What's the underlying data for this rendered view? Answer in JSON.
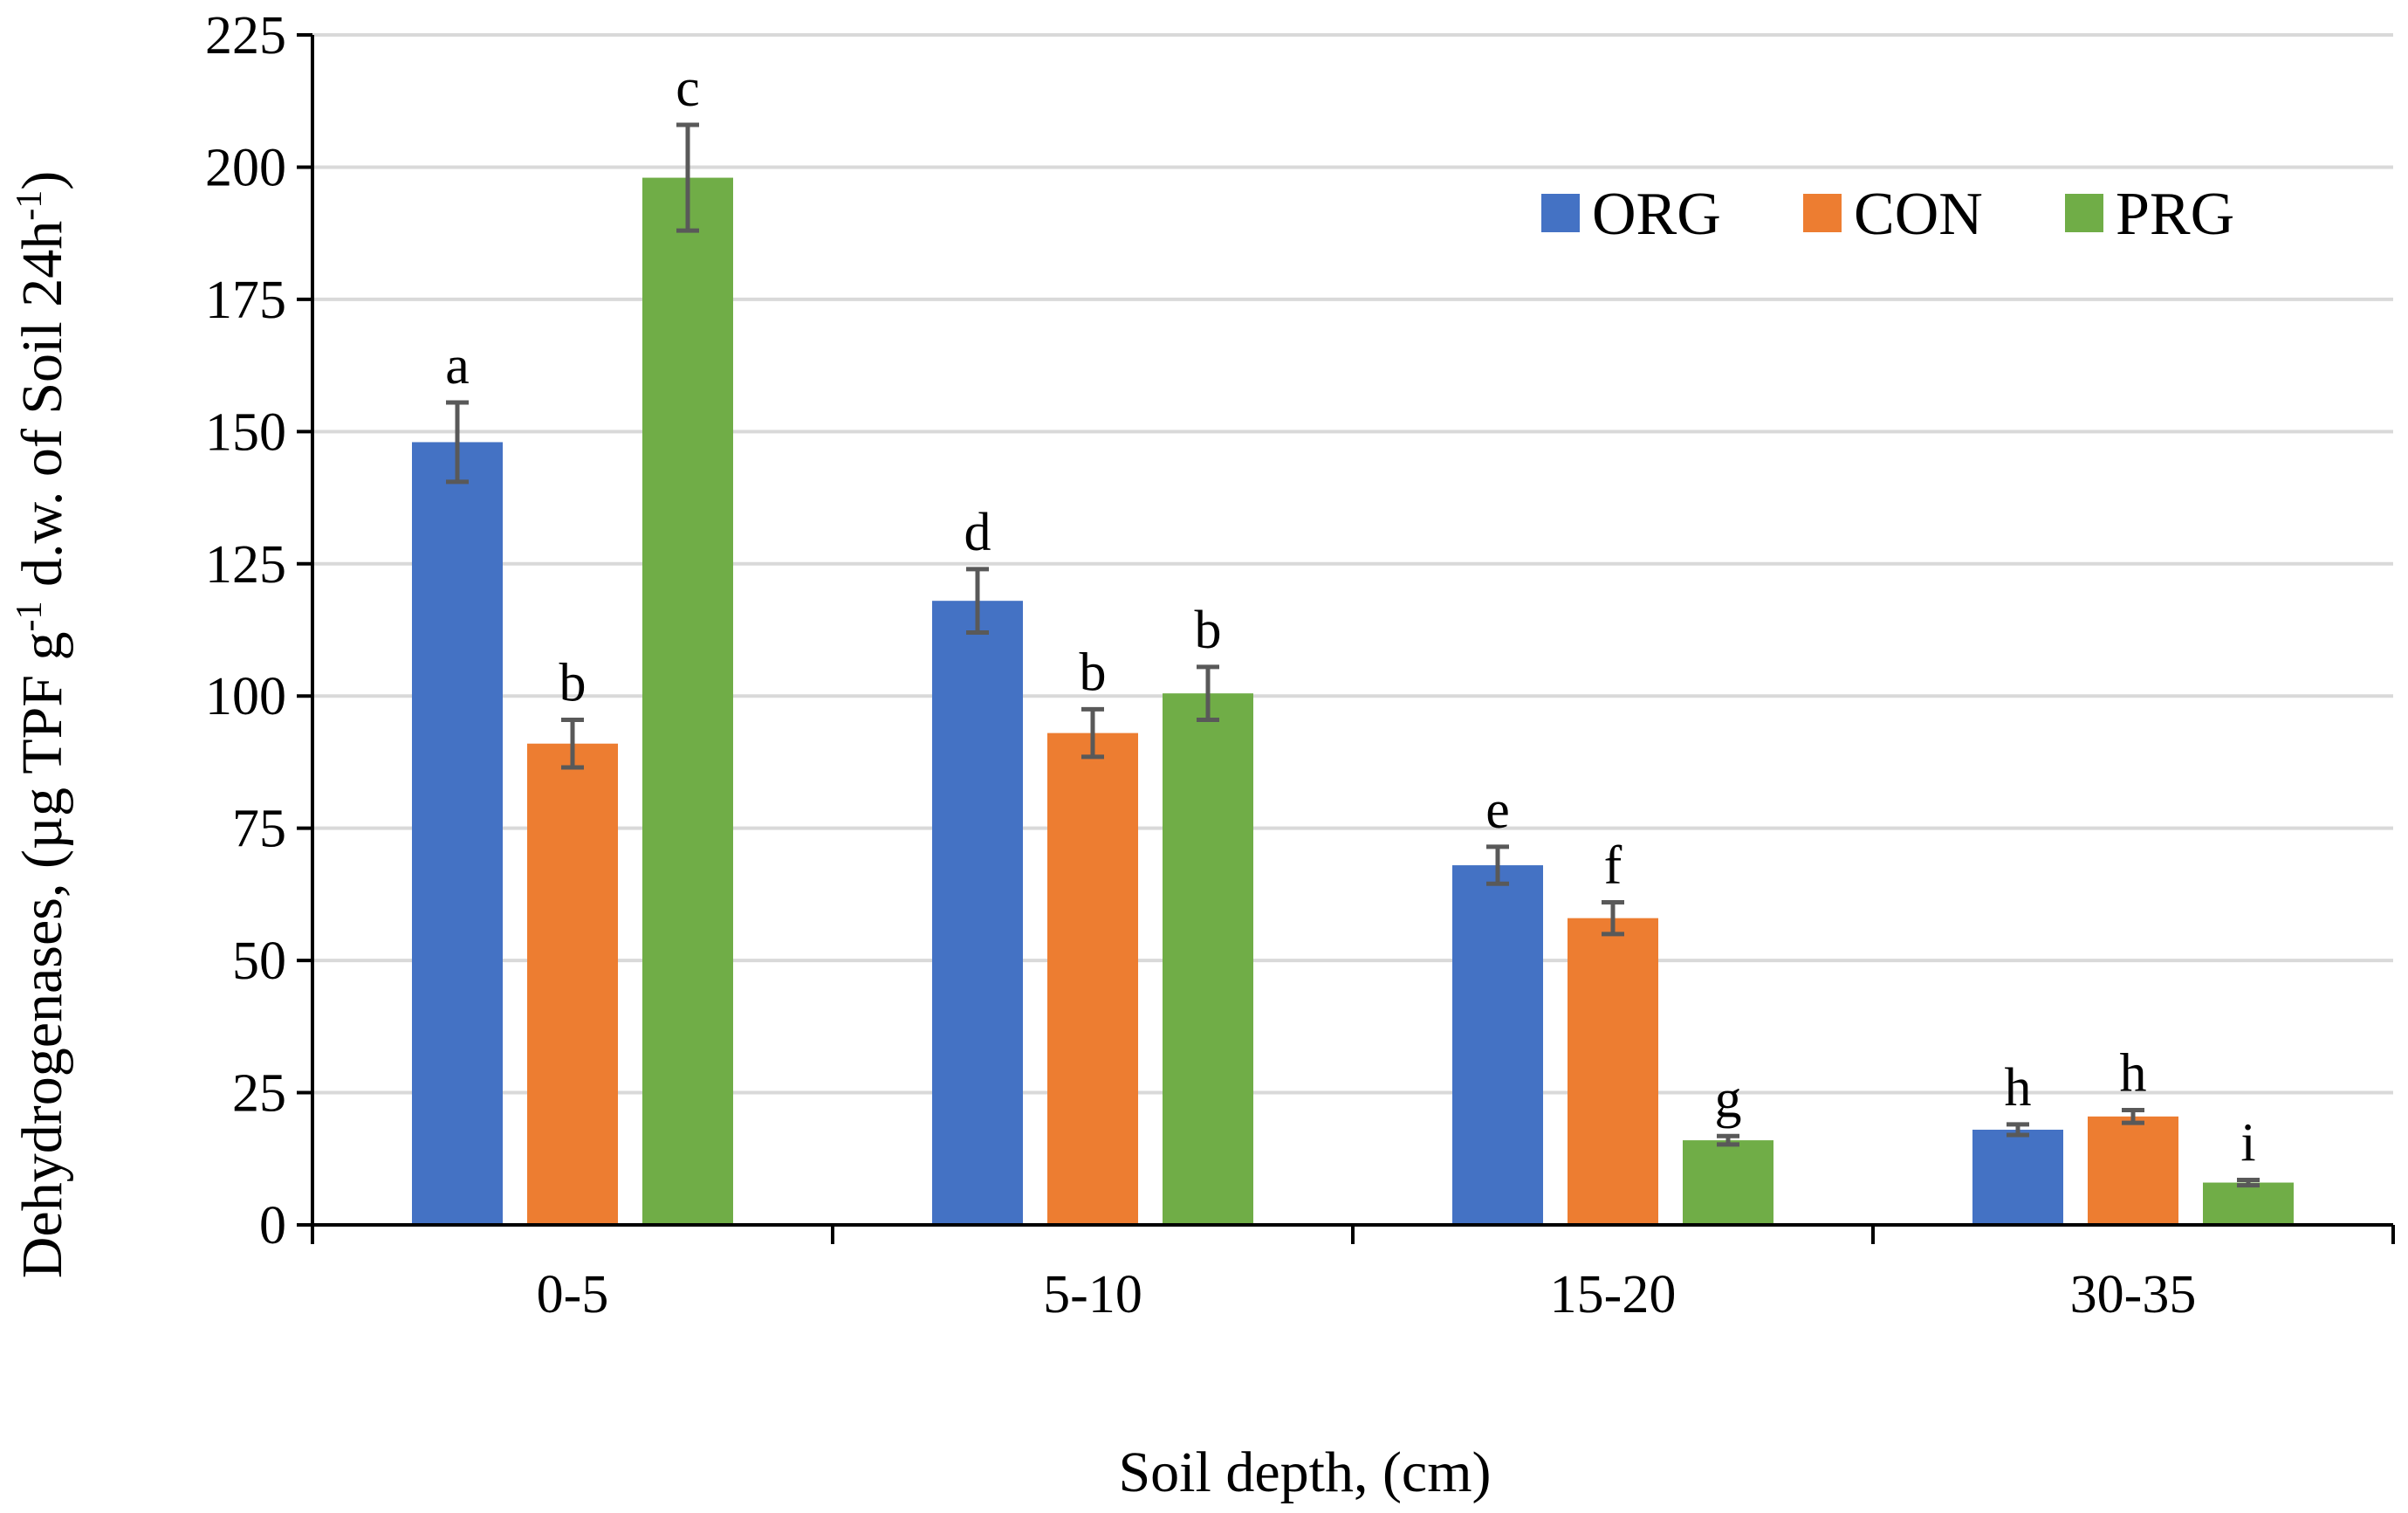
{
  "chart_data": {
    "type": "bar",
    "title": "",
    "xlabel": "Soil depth, (cm)",
    "ylabel_parts": {
      "main": "Dehydrogenases, (µg TPF g",
      "sup1": "-1",
      "mid": " d.w. of Soil 24h",
      "sup2": "-1",
      "end": ")"
    },
    "categories": [
      "0-5",
      "5-10",
      "15-20",
      "30-35"
    ],
    "ylim": [
      0,
      225
    ],
    "yticks": [
      0,
      25,
      50,
      75,
      100,
      125,
      150,
      175,
      200,
      225
    ],
    "grid": true,
    "legend_position": "top-right",
    "series": [
      {
        "name": "ORG",
        "color": "#4472C4",
        "values": [
          148,
          118,
          68,
          18
        ],
        "errors": [
          7.5,
          6,
          3.5,
          1
        ],
        "letters": [
          "a",
          "d",
          "e",
          "h"
        ]
      },
      {
        "name": "CON",
        "color": "#ED7D31",
        "values": [
          91,
          93,
          58,
          20.5
        ],
        "errors": [
          4.5,
          4.5,
          3,
          1.2
        ],
        "letters": [
          "b",
          "b",
          "f",
          "h"
        ]
      },
      {
        "name": "PRG",
        "color": "#70AD47",
        "values": [
          198,
          100.5,
          16,
          8
        ],
        "errors": [
          10,
          5,
          0.8,
          0.5
        ],
        "letters": [
          "c",
          "b",
          "g",
          "i"
        ]
      }
    ]
  }
}
